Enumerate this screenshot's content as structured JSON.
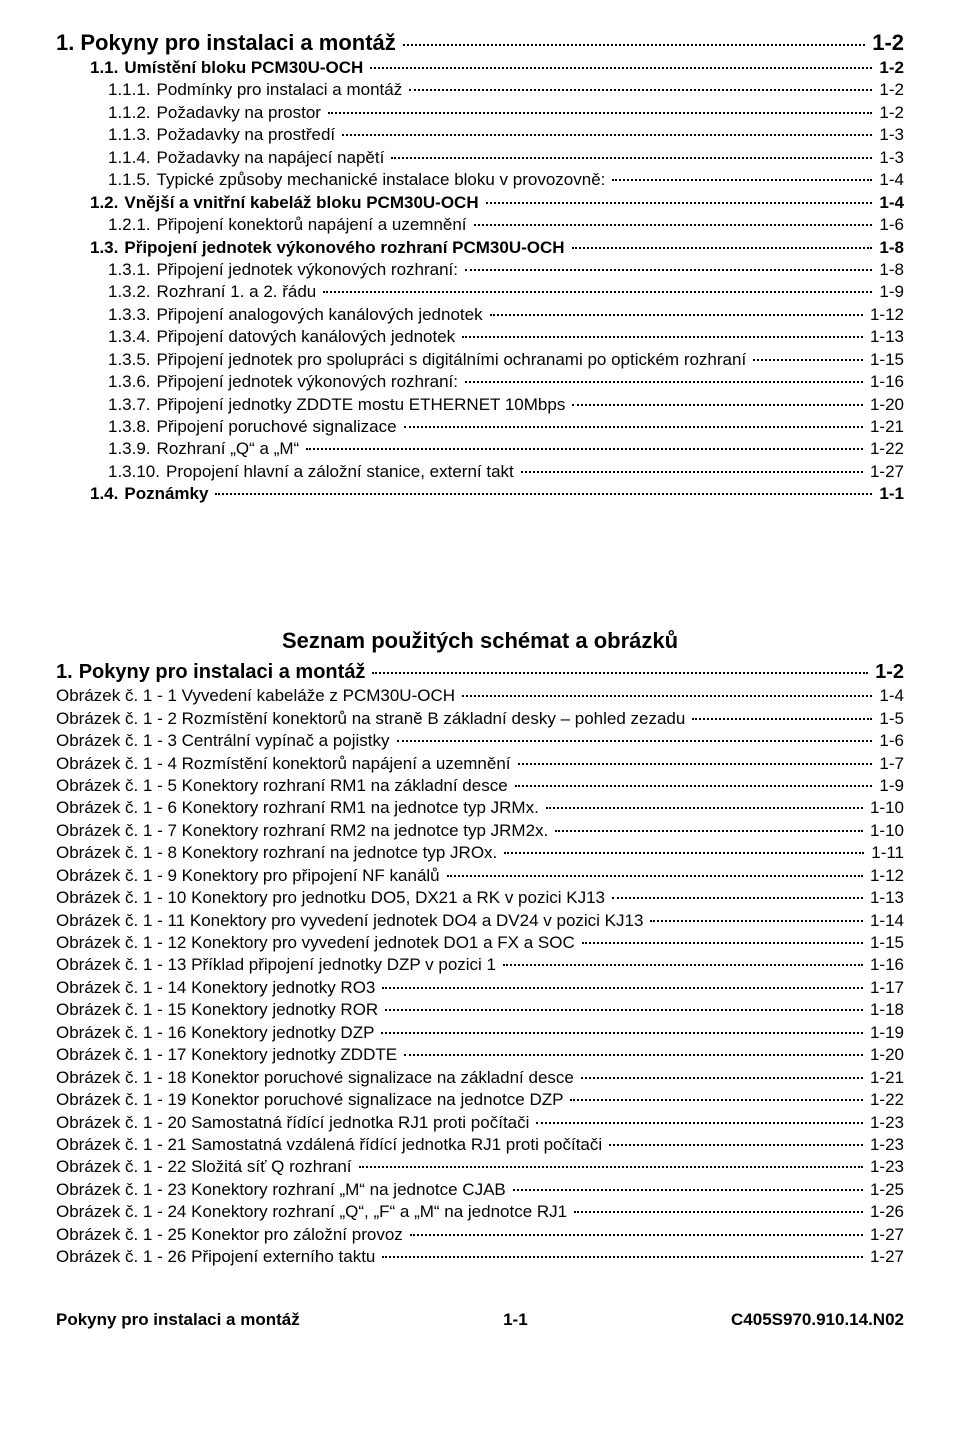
{
  "toc1": [
    {
      "lvl": 0,
      "bold": true,
      "fs": "xl",
      "num": "1.",
      "title": "Pokyny pro instalaci a montáž",
      "page": "1-2"
    },
    {
      "lvl": 1,
      "bold": true,
      "fs": "md",
      "num": "1.1.",
      "title": "Umístění bloku PCM30U-OCH",
      "page": "1-2"
    },
    {
      "lvl": 2,
      "bold": false,
      "fs": "md",
      "num": "1.1.1.",
      "title": "Podmínky pro instalaci a montáž",
      "page": "1-2"
    },
    {
      "lvl": 2,
      "bold": false,
      "fs": "md",
      "num": "1.1.2.",
      "title": "Požadavky na prostor",
      "page": "1-2"
    },
    {
      "lvl": 2,
      "bold": false,
      "fs": "md",
      "num": "1.1.3.",
      "title": "Požadavky na prostředí",
      "page": "1-3"
    },
    {
      "lvl": 2,
      "bold": false,
      "fs": "md",
      "num": "1.1.4.",
      "title": "Požadavky na napájecí napětí",
      "page": "1-3"
    },
    {
      "lvl": 2,
      "bold": false,
      "fs": "md",
      "num": "1.1.5.",
      "title": "Typické způsoby mechanické instalace bloku v provozovně:",
      "page": "1-4"
    },
    {
      "lvl": 1,
      "bold": true,
      "fs": "md",
      "num": "1.2.",
      "title": "Vnější a vnitřní kabeláž bloku PCM30U-OCH",
      "page": "1-4"
    },
    {
      "lvl": 2,
      "bold": false,
      "fs": "md",
      "num": "1.2.1.",
      "title": "Připojení konektorů napájení a uzemnění",
      "page": "1-6"
    },
    {
      "lvl": 1,
      "bold": true,
      "fs": "md",
      "num": "1.3.",
      "title": "Připojení jednotek výkonového rozhraní PCM30U-OCH",
      "page": "1-8"
    },
    {
      "lvl": 2,
      "bold": false,
      "fs": "md",
      "num": "1.3.1.",
      "title": "Připojení jednotek výkonových rozhraní:",
      "page": "1-8"
    },
    {
      "lvl": 2,
      "bold": false,
      "fs": "md",
      "num": "1.3.2.",
      "title": "Rozhraní 1. a 2. řádu",
      "page": "1-9"
    },
    {
      "lvl": 2,
      "bold": false,
      "fs": "md",
      "num": "1.3.3.",
      "title": "Připojení analogových kanálových jednotek",
      "page": "1-12"
    },
    {
      "lvl": 2,
      "bold": false,
      "fs": "md",
      "num": "1.3.4.",
      "title": "Připojení datových kanálových jednotek",
      "page": "1-13"
    },
    {
      "lvl": 2,
      "bold": false,
      "fs": "md",
      "num": "1.3.5.",
      "title": "Připojení jednotek pro spolupráci s digitálními ochranami po optickém rozhraní",
      "page": "1-15"
    },
    {
      "lvl": 2,
      "bold": false,
      "fs": "md",
      "num": "1.3.6.",
      "title": "Připojení jednotek výkonových rozhraní:",
      "page": "1-16"
    },
    {
      "lvl": 2,
      "bold": false,
      "fs": "md",
      "num": "1.3.7.",
      "title": "Připojení jednotky ZDDTE mostu ETHERNET 10Mbps",
      "page": "1-20"
    },
    {
      "lvl": 2,
      "bold": false,
      "fs": "md",
      "num": "1.3.8.",
      "title": "Připojení poruchové signalizace",
      "page": "1-21"
    },
    {
      "lvl": 2,
      "bold": false,
      "fs": "md",
      "num": "1.3.9.",
      "title": "Rozhraní „Q“ a „M“",
      "page": "1-22"
    },
    {
      "lvl": 2,
      "bold": false,
      "fs": "md",
      "num": "1.3.10.",
      "title": "Propojení hlavní a záložní stanice, externí takt",
      "page": "1-27"
    },
    {
      "lvl": 1,
      "bold": true,
      "fs": "md",
      "num": "1.4.",
      "title": "Poznámky",
      "page": "1-1"
    }
  ],
  "schematHeading": "Seznam použitých schémat a obrázků",
  "toc2": [
    {
      "lvl": 0,
      "bold": true,
      "fs": "lg",
      "num": "1.",
      "title": "Pokyny pro instalaci a montáž",
      "page": "1-2"
    },
    {
      "lvl": 0,
      "bold": false,
      "fs": "md",
      "num": "",
      "title": "Obrázek č. 1 - 1 Vyvedení kabeláže z PCM30U-OCH",
      "page": "1-4"
    },
    {
      "lvl": 0,
      "bold": false,
      "fs": "md",
      "num": "",
      "title": "Obrázek č. 1 - 2 Rozmístění konektorů na straně B základní desky – pohled zezadu",
      "page": "1-5"
    },
    {
      "lvl": 0,
      "bold": false,
      "fs": "md",
      "num": "",
      "title": "Obrázek č. 1 - 3 Centrální vypínač a pojistky",
      "page": "1-6"
    },
    {
      "lvl": 0,
      "bold": false,
      "fs": "md",
      "num": "",
      "title": "Obrázek č. 1 - 4 Rozmístění konektorů napájení a uzemnění",
      "page": "1-7"
    },
    {
      "lvl": 0,
      "bold": false,
      "fs": "md",
      "num": "",
      "title": "Obrázek č. 1 - 5 Konektory rozhraní RM1 na základní desce",
      "page": "1-9"
    },
    {
      "lvl": 0,
      "bold": false,
      "fs": "md",
      "num": "",
      "title": "Obrázek č. 1 - 6 Konektory rozhraní RM1 na jednotce typ JRMx.",
      "page": "1-10"
    },
    {
      "lvl": 0,
      "bold": false,
      "fs": "md",
      "num": "",
      "title": "Obrázek č. 1 - 7 Konektory rozhraní RM2 na jednotce typ JRM2x.",
      "page": "1-10"
    },
    {
      "lvl": 0,
      "bold": false,
      "fs": "md",
      "num": "",
      "title": "Obrázek č. 1 - 8 Konektory rozhraní na jednotce typ JROx.",
      "page": "1-11"
    },
    {
      "lvl": 0,
      "bold": false,
      "fs": "md",
      "num": "",
      "title": "Obrázek č. 1 - 9 Konektory pro připojení NF kanálů",
      "page": "1-12"
    },
    {
      "lvl": 0,
      "bold": false,
      "fs": "md",
      "num": "",
      "title": "Obrázek č. 1 - 10 Konektory pro jednotku DO5, DX21 a RK v pozici KJ13",
      "page": "1-13"
    },
    {
      "lvl": 0,
      "bold": false,
      "fs": "md",
      "num": "",
      "title": "Obrázek č. 1 - 11 Konektory pro vyvedení jednotek DO4 a DV24 v pozici KJ13",
      "page": "1-14"
    },
    {
      "lvl": 0,
      "bold": false,
      "fs": "md",
      "num": "",
      "title": "Obrázek č. 1 - 12 Konektory pro vyvedení jednotek DO1 a FX a SOC",
      "page": "1-15"
    },
    {
      "lvl": 0,
      "bold": false,
      "fs": "md",
      "num": "",
      "title": "Obrázek č. 1 - 13 Příklad připojení jednotky DZP v pozici 1",
      "page": "1-16"
    },
    {
      "lvl": 0,
      "bold": false,
      "fs": "md",
      "num": "",
      "title": "Obrázek č. 1 - 14 Konektory jednotky RO3",
      "page": "1-17"
    },
    {
      "lvl": 0,
      "bold": false,
      "fs": "md",
      "num": "",
      "title": "Obrázek č. 1 - 15 Konektory jednotky ROR",
      "page": "1-18"
    },
    {
      "lvl": 0,
      "bold": false,
      "fs": "md",
      "num": "",
      "title": "Obrázek č. 1 - 16 Konektory jednotky DZP",
      "page": "1-19"
    },
    {
      "lvl": 0,
      "bold": false,
      "fs": "md",
      "num": "",
      "title": "Obrázek č. 1 - 17 Konektory jednotky ZDDTE",
      "page": "1-20"
    },
    {
      "lvl": 0,
      "bold": false,
      "fs": "md",
      "num": "",
      "title": "Obrázek č. 1 - 18 Konektor poruchové signalizace na základní desce",
      "page": "1-21"
    },
    {
      "lvl": 0,
      "bold": false,
      "fs": "md",
      "num": "",
      "title": "Obrázek č. 1 - 19 Konektor poruchové signalizace na jednotce DZP",
      "page": "1-22"
    },
    {
      "lvl": 0,
      "bold": false,
      "fs": "md",
      "num": "",
      "title": "Obrázek č. 1 - 20 Samostatná řídící jednotka RJ1 proti počítači",
      "page": "1-23"
    },
    {
      "lvl": 0,
      "bold": false,
      "fs": "md",
      "num": "",
      "title": "Obrázek č. 1 - 21 Samostatná vzdálená řídící jednotka RJ1 proti počítači",
      "page": "1-23"
    },
    {
      "lvl": 0,
      "bold": false,
      "fs": "md",
      "num": "",
      "title": "Obrázek č. 1 - 22 Složitá síť Q rozhraní",
      "page": "1-23"
    },
    {
      "lvl": 0,
      "bold": false,
      "fs": "md",
      "num": "",
      "title": "Obrázek č. 1 - 23 Konektory rozhraní „M“ na jednotce CJAB",
      "page": "1-25"
    },
    {
      "lvl": 0,
      "bold": false,
      "fs": "md",
      "num": "",
      "title": "Obrázek č. 1 - 24 Konektory rozhraní „Q“, „F“ a „M“ na jednotce RJ1",
      "page": "1-26"
    },
    {
      "lvl": 0,
      "bold": false,
      "fs": "md",
      "num": "",
      "title": "Obrázek č. 1 - 25 Konektor pro záložní provoz",
      "page": "1-27"
    },
    {
      "lvl": 0,
      "bold": false,
      "fs": "md",
      "num": "",
      "title": "Obrázek č. 1 - 26 Připojení externího taktu",
      "page": "1-27"
    }
  ],
  "footer": {
    "left": "Pokyny pro instalaci a montáž",
    "center": "1-1",
    "right": "C405S970.910.14.N02"
  }
}
